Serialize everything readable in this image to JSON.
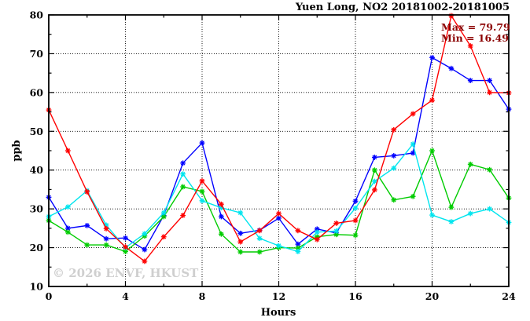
{
  "chart_data": {
    "type": "line",
    "title": "Yuen Long, NO2 20181002-20181005",
    "xlabel": "Hours",
    "ylabel": "ppb",
    "xlim": [
      0,
      24
    ],
    "ylim": [
      10,
      80
    ],
    "x_ticks": [
      0,
      4,
      8,
      12,
      16,
      20,
      24
    ],
    "x_minor_step": 2,
    "y_ticks": [
      10,
      20,
      30,
      40,
      50,
      60,
      70,
      80
    ],
    "y_minor_step": 5,
    "grid": "dotted-major",
    "legend": "none",
    "annotations": {
      "max_label": "Max = 79.79",
      "min_label": "Min = 16.49",
      "max_value": 79.79,
      "min_value": 16.49
    },
    "watermark": "© 2026 ENVF, HKUST",
    "x": [
      0,
      1,
      2,
      3,
      4,
      5,
      6,
      7,
      8,
      9,
      10,
      11,
      12,
      13,
      14,
      15,
      16,
      17,
      18,
      19,
      20,
      21,
      22,
      23,
      24
    ],
    "series": [
      {
        "name": "blue",
        "color": "#0000ff",
        "values": [
          33.0,
          25.0,
          25.7,
          22.3,
          22.5,
          19.5,
          28.3,
          41.8,
          47.0,
          28.0,
          23.7,
          24.5,
          27.6,
          20.9,
          24.8,
          23.8,
          32.0,
          43.3,
          43.7,
          44.4,
          69.0,
          66.2,
          63.1,
          63.1,
          55.7
        ]
      },
      {
        "name": "red",
        "color": "#ff0000",
        "values": [
          55.5,
          45.0,
          34.4,
          24.9,
          20.2,
          16.49,
          22.8,
          28.3,
          37.2,
          31.2,
          21.5,
          24.4,
          28.8,
          24.4,
          22.1,
          26.3,
          27.0,
          34.9,
          50.4,
          54.5,
          58.0,
          79.79,
          72.0,
          60.0,
          59.9
        ]
      },
      {
        "name": "green",
        "color": "#00cc00",
        "values": [
          27.0,
          24.0,
          20.7,
          20.7,
          19.0,
          23.0,
          28.0,
          35.7,
          34.5,
          23.5,
          18.9,
          18.9,
          20.0,
          19.9,
          22.8,
          23.4,
          23.2,
          40.0,
          32.3,
          33.2,
          45.0,
          30.4,
          41.5,
          40.1,
          32.8
        ]
      },
      {
        "name": "cyan",
        "color": "#00e5ee",
        "values": [
          28.0,
          30.5,
          34.7,
          25.8,
          20.0,
          23.6,
          29.0,
          39.0,
          32.1,
          30.3,
          29.0,
          22.4,
          20.5,
          19.0,
          24.0,
          24.3,
          30.2,
          37.1,
          40.5,
          46.7,
          28.4,
          26.7,
          28.8,
          30.0,
          26.5
        ]
      }
    ]
  }
}
